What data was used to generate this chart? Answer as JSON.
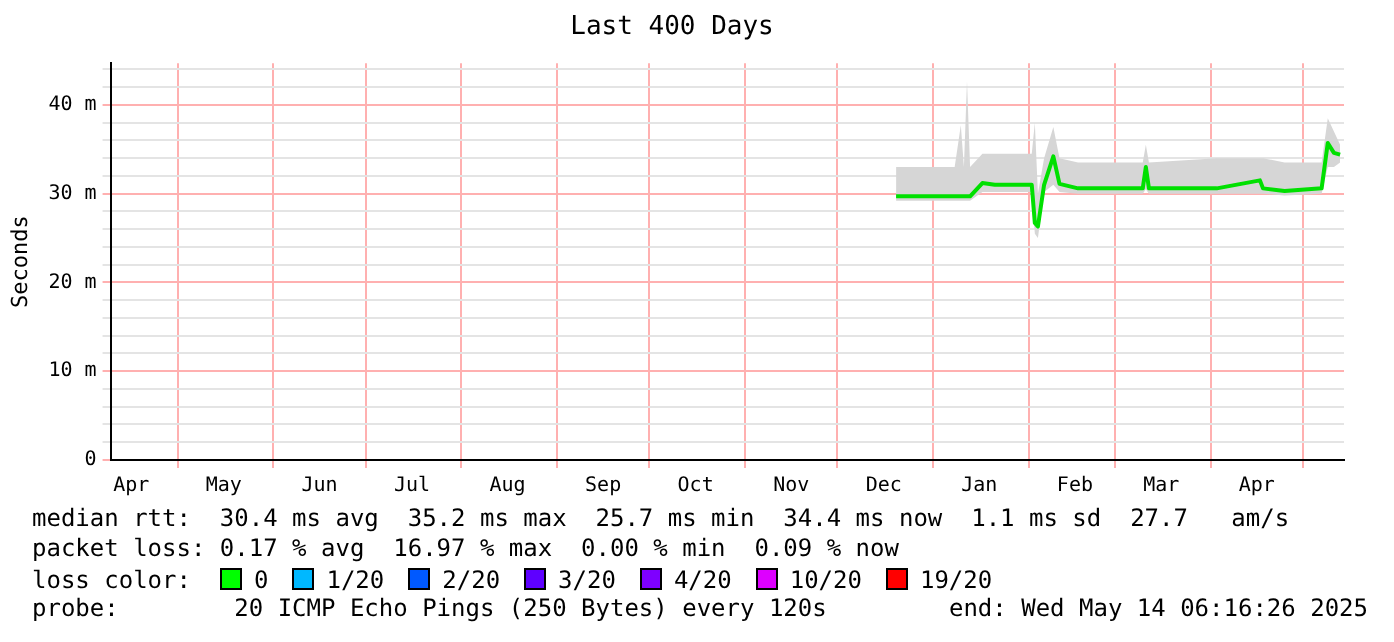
{
  "chart_data": {
    "type": "line",
    "title": "Last 400 Days",
    "ylabel": "Seconds",
    "x": [
      "2024-12-20",
      "2025-01-08",
      "2025-01-10",
      "2025-01-11",
      "2025-01-12",
      "2025-01-13",
      "2025-01-17",
      "2025-01-21",
      "2025-02-02",
      "2025-02-03",
      "2025-02-04",
      "2025-02-06",
      "2025-02-09",
      "2025-02-11",
      "2025-02-17",
      "2025-03-10",
      "2025-03-11",
      "2025-03-12",
      "2025-04-03",
      "2025-04-17",
      "2025-04-18",
      "2025-04-25",
      "2025-05-07",
      "2025-05-09",
      "2025-05-11",
      "2025-05-13"
    ],
    "series": [
      {
        "color": "#00e000",
        "values": [
          29.7,
          29.7,
          29.7,
          29.7,
          29.7,
          29.7,
          31.2,
          31.0,
          31.0,
          26.7,
          26.3,
          31.0,
          34.2,
          31.1,
          30.6,
          30.6,
          33.0,
          30.6,
          30.6,
          31.5,
          30.6,
          30.3,
          30.6,
          35.7,
          34.6,
          34.4
        ],
        "lower": [
          29.2,
          29.2,
          29.2,
          29.2,
          29.2,
          29.2,
          30.2,
          30.2,
          30.2,
          25.5,
          25.0,
          30.2,
          31.0,
          30.2,
          30.0,
          30.0,
          30.5,
          30.0,
          30.0,
          30.0,
          30.0,
          29.8,
          30.0,
          33.0,
          33.0,
          33.5
        ],
        "upper": [
          33.0,
          33.0,
          37.7,
          33.0,
          42.7,
          33.0,
          34.5,
          34.5,
          34.5,
          38.0,
          30.0,
          34.0,
          37.5,
          34.0,
          33.5,
          33.5,
          35.5,
          33.5,
          34.0,
          34.0,
          34.0,
          33.5,
          33.5,
          38.5,
          37.0,
          35.5
        ]
      }
    ],
    "xlim": [
      "2024-04-09T06:16",
      "2025-05-14T06:16"
    ],
    "xticks": [
      {
        "value": "2024-04-16",
        "label": "Apr"
      },
      {
        "value": "2024-05-01",
        "label": null
      },
      {
        "value": "2024-05-16",
        "label": "May"
      },
      {
        "value": "2024-06-01",
        "label": null
      },
      {
        "value": "2024-06-16",
        "label": "Jun"
      },
      {
        "value": "2024-07-01",
        "label": null
      },
      {
        "value": "2024-07-16",
        "label": "Jul"
      },
      {
        "value": "2024-08-01",
        "label": null
      },
      {
        "value": "2024-08-16",
        "label": "Aug"
      },
      {
        "value": "2024-09-01",
        "label": null
      },
      {
        "value": "2024-09-16",
        "label": "Sep"
      },
      {
        "value": "2024-10-01",
        "label": null
      },
      {
        "value": "2024-10-16",
        "label": "Oct"
      },
      {
        "value": "2024-11-01",
        "label": null
      },
      {
        "value": "2024-11-16",
        "label": "Nov"
      },
      {
        "value": "2024-12-01",
        "label": null
      },
      {
        "value": "2024-12-16",
        "label": "Dec"
      },
      {
        "value": "2025-01-01",
        "label": null
      },
      {
        "value": "2025-01-16",
        "label": "Jan"
      },
      {
        "value": "2025-02-01",
        "label": null
      },
      {
        "value": "2025-02-16",
        "label": "Feb"
      },
      {
        "value": "2025-03-01",
        "label": null
      },
      {
        "value": "2025-03-16",
        "label": "Mar"
      },
      {
        "value": "2025-04-01",
        "label": null
      },
      {
        "value": "2025-04-16",
        "label": "Apr"
      },
      {
        "value": "2025-05-01",
        "label": null
      }
    ],
    "ylim": [
      0,
      44.7
    ],
    "yticks": [
      {
        "value": 0,
        "label": "0"
      },
      {
        "value": 2,
        "label": null
      },
      {
        "value": 4,
        "label": null
      },
      {
        "value": 6,
        "label": null
      },
      {
        "value": 8,
        "label": null
      },
      {
        "value": 10,
        "label": "10 m"
      },
      {
        "value": 12,
        "label": null
      },
      {
        "value": 14,
        "label": null
      },
      {
        "value": 16,
        "label": null
      },
      {
        "value": 18,
        "label": null
      },
      {
        "value": 20,
        "label": "20 m"
      },
      {
        "value": 22,
        "label": null
      },
      {
        "value": 24,
        "label": null
      },
      {
        "value": 26,
        "label": null
      },
      {
        "value": 28,
        "label": null
      },
      {
        "value": 30,
        "label": "30 m"
      },
      {
        "value": 32,
        "label": null
      },
      {
        "value": 34,
        "label": null
      },
      {
        "value": 36,
        "label": null
      },
      {
        "value": 38,
        "label": null
      },
      {
        "value": 40,
        "label": "40 m"
      },
      {
        "value": 42,
        "label": null
      },
      {
        "value": 44,
        "label": null
      }
    ],
    "grid": true,
    "legend": false,
    "marker": "none",
    "line_style": "solid",
    "annotations": [
      "median rtt:  30.4 ms avg  35.2 ms max  25.7 ms min  34.4 ms now  1.1 ms sd  27.7   am/s",
      "packet loss: 0.17 % avg  16.97 % max  0.00 % min  0.09 % now",
      "loss color:",
      "0",
      "1/20",
      "2/20",
      "3/20",
      "4/20",
      "10/20",
      "19/20",
      "probe:        20 ICMP Echo Pings (250 Bytes) every 120s",
      "end: Wed May 14 06:16:26 2025"
    ]
  }
}
